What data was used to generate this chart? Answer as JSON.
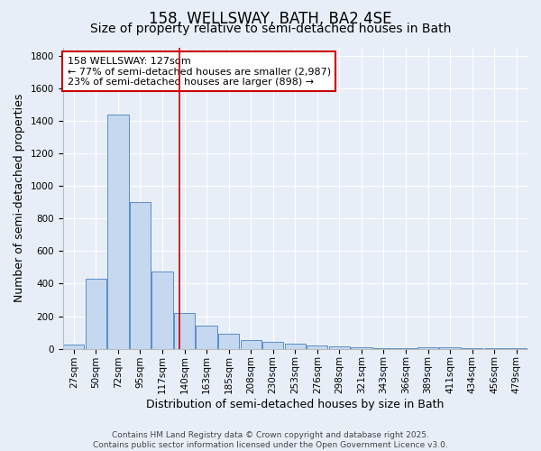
{
  "title": "158, WELLSWAY, BATH, BA2 4SE",
  "subtitle": "Size of property relative to semi-detached houses in Bath",
  "xlabel": "Distribution of semi-detached houses by size in Bath",
  "ylabel": "Number of semi-detached properties",
  "categories": [
    "27sqm",
    "50sqm",
    "72sqm",
    "95sqm",
    "117sqm",
    "140sqm",
    "163sqm",
    "185sqm",
    "208sqm",
    "230sqm",
    "253sqm",
    "276sqm",
    "298sqm",
    "321sqm",
    "343sqm",
    "366sqm",
    "389sqm",
    "411sqm",
    "434sqm",
    "456sqm",
    "479sqm"
  ],
  "values": [
    28,
    430,
    1440,
    900,
    475,
    220,
    140,
    90,
    55,
    42,
    32,
    23,
    15,
    8,
    5,
    5,
    12,
    7,
    2,
    5,
    2
  ],
  "bar_color": "#c5d8f0",
  "bar_edge_color": "#5b8ec4",
  "background_color": "#e8eef8",
  "grid_color": "#ffffff",
  "vline_x": 4.77,
  "vline_color": "#cc0000",
  "annotation_line1": "158 WELLSWAY: 127sqm",
  "annotation_line2": "← 77% of semi-detached houses are smaller (2,987)",
  "annotation_line3": "23% of semi-detached houses are larger (898) →",
  "annotation_box_color": "#ffffff",
  "annotation_box_edge": "#cc0000",
  "ylim": [
    0,
    1850
  ],
  "yticks": [
    0,
    200,
    400,
    600,
    800,
    1000,
    1200,
    1400,
    1600,
    1800
  ],
  "footer": "Contains HM Land Registry data © Crown copyright and database right 2025.\nContains public sector information licensed under the Open Government Licence v3.0.",
  "title_fontsize": 12,
  "subtitle_fontsize": 10,
  "tick_fontsize": 7.5,
  "ylabel_fontsize": 9,
  "xlabel_fontsize": 9,
  "annotation_fontsize": 8,
  "footer_fontsize": 6.5
}
